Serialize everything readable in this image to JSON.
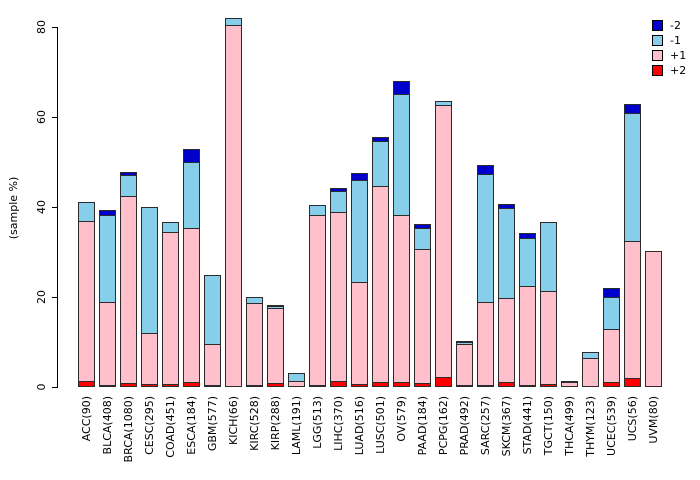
{
  "chart_data": {
    "type": "bar",
    "stacked": true,
    "title": "",
    "xlabel": "",
    "ylabel": "(sample %)",
    "ylim": [
      0,
      80
    ],
    "yticks": [
      0,
      20,
      40,
      60,
      80
    ],
    "grid": false,
    "legend_position": "top-right",
    "categories": [
      "ACC(90)",
      "BLCA(408)",
      "BRCA(1080)",
      "CESC(295)",
      "COAD(451)",
      "ESCA(184)",
      "GBM(577)",
      "KICH(66)",
      "KIRC(528)",
      "KIRP(288)",
      "LAML(191)",
      "LGG(513)",
      "LIHC(370)",
      "LUAD(516)",
      "LUSC(501)",
      "OV(579)",
      "PAAD(184)",
      "PCPG(162)",
      "PRAD(492)",
      "SARC(257)",
      "SKCM(367)",
      "STAD(441)",
      "TGCT(150)",
      "THCA(499)",
      "THYM(123)",
      "UCEC(539)",
      "UCS(56)",
      "UVM(80)"
    ],
    "series": [
      {
        "name": "-2",
        "color": "#0000CD",
        "values": [
          0,
          1.3,
          0.9,
          0,
          0,
          3.3,
          0,
          0,
          0,
          0.5,
          0,
          0,
          0.9,
          1.8,
          1.2,
          3.0,
          1.1,
          0,
          0.4,
          2.2,
          1.1,
          1.3,
          0,
          0,
          0,
          2.2,
          2.2,
          0
        ]
      },
      {
        "name": "-1",
        "color": "#87CEEB",
        "values": [
          4.5,
          19.3,
          4.7,
          28.3,
          2.5,
          14.6,
          15.7,
          1.7,
          1.5,
          0.4,
          1.9,
          2.5,
          4.7,
          22.7,
          10.0,
          26.9,
          4.7,
          1.0,
          0.5,
          28.4,
          20.0,
          10.7,
          15.6,
          0.4,
          1.6,
          7.1,
          28.5,
          0
        ]
      },
      {
        "name": "+1",
        "color": "#FFC0CB",
        "values": [
          35.6,
          18.5,
          41.5,
          11.3,
          33.7,
          34.3,
          9.1,
          80.3,
          18.3,
          16.6,
          1.2,
          37.7,
          37.6,
          22.7,
          43.6,
          37.1,
          29.8,
          60.5,
          9.1,
          18.4,
          18.8,
          21.9,
          20.6,
          0.9,
          6.2,
          11.9,
          30.4,
          30.2
        ]
      },
      {
        "name": "+2",
        "color": "#FF0000",
        "values": [
          1.1,
          0.2,
          0.7,
          0.4,
          0.5,
          0.8,
          0.2,
          0,
          0.2,
          0.7,
          0,
          0.3,
          1.0,
          0.4,
          0.8,
          0.9,
          0.6,
          2.0,
          0.2,
          0.3,
          0.8,
          0.3,
          0.5,
          0,
          0,
          0.8,
          1.8,
          0
        ]
      }
    ],
    "legend_entries": [
      {
        "label": "-2",
        "color": "#0000CD"
      },
      {
        "label": "-1",
        "color": "#87CEEB"
      },
      {
        "label": "+1",
        "color": "#FFC0CB"
      },
      {
        "label": "+2",
        "color": "#FF0000"
      }
    ]
  }
}
